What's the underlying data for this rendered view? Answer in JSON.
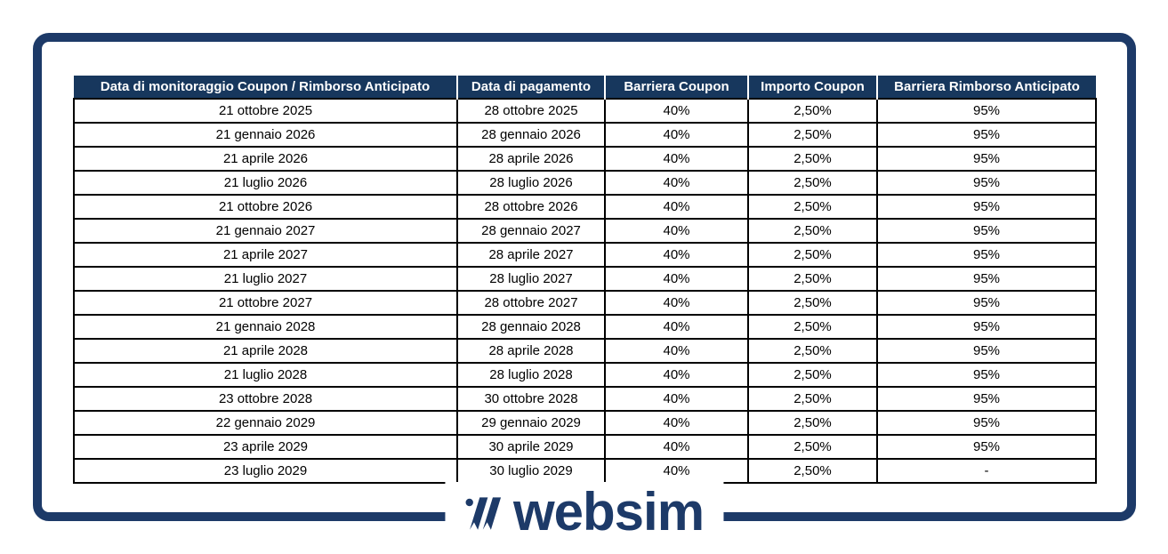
{
  "colors": {
    "navy_header": "#17375d",
    "navy_frame": "#1d3a68",
    "cell_border": "#000000"
  },
  "table": {
    "headers": [
      "Data di monitoraggio Coupon / Rimborso Anticipato",
      "Data di pagamento",
      "Barriera Coupon",
      "Importo Coupon",
      "Barriera Rimborso Anticipato"
    ],
    "rows": [
      [
        "21 ottobre 2025",
        "28 ottobre 2025",
        "40%",
        "2,50%",
        "95%"
      ],
      [
        "21 gennaio 2026",
        "28 gennaio 2026",
        "40%",
        "2,50%",
        "95%"
      ],
      [
        "21 aprile 2026",
        "28 aprile 2026",
        "40%",
        "2,50%",
        "95%"
      ],
      [
        "21 luglio 2026",
        "28 luglio 2026",
        "40%",
        "2,50%",
        "95%"
      ],
      [
        "21 ottobre 2026",
        "28 ottobre 2026",
        "40%",
        "2,50%",
        "95%"
      ],
      [
        "21 gennaio 2027",
        "28 gennaio 2027",
        "40%",
        "2,50%",
        "95%"
      ],
      [
        "21 aprile 2027",
        "28 aprile 2027",
        "40%",
        "2,50%",
        "95%"
      ],
      [
        "21 luglio 2027",
        "28 luglio 2027",
        "40%",
        "2,50%",
        "95%"
      ],
      [
        "21 ottobre 2027",
        "28 ottobre 2027",
        "40%",
        "2,50%",
        "95%"
      ],
      [
        "21 gennaio 2028",
        "28 gennaio 2028",
        "40%",
        "2,50%",
        "95%"
      ],
      [
        "21 aprile 2028",
        "28 aprile 2028",
        "40%",
        "2,50%",
        "95%"
      ],
      [
        "21 luglio 2028",
        "28 luglio 2028",
        "40%",
        "2,50%",
        "95%"
      ],
      [
        "23 ottobre 2028",
        "30 ottobre 2028",
        "40%",
        "2,50%",
        "95%"
      ],
      [
        "22 gennaio 2029",
        "29 gennaio 2029",
        "40%",
        "2,50%",
        "95%"
      ],
      [
        "23 aprile 2029",
        "30 aprile 2029",
        "40%",
        "2,50%",
        "95%"
      ],
      [
        "23 luglio 2029",
        "30 luglio 2029",
        "40%",
        "2,50%",
        "-"
      ]
    ]
  },
  "logo": {
    "text": "websim"
  }
}
